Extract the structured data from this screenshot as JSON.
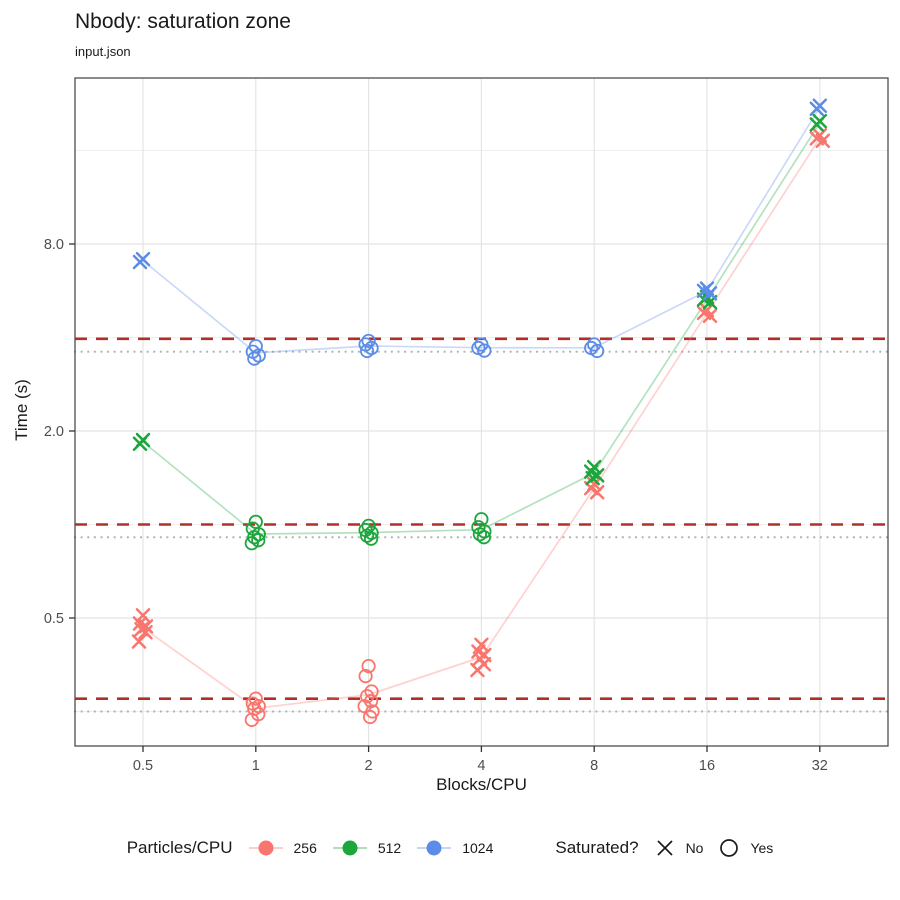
{
  "header": {
    "title": "Nbody: saturation zone",
    "subtitle": "input.json"
  },
  "chart_data": {
    "type": "scatter",
    "title": "Nbody: saturation zone",
    "subtitle": "input.json",
    "xlabel": "Blocks/CPU",
    "ylabel": "Time (s)",
    "x_scale": "log2",
    "y_scale": "log10",
    "xlim": [
      0.33,
      48
    ],
    "ylim": [
      0.19,
      27.5
    ],
    "x_ticks": [
      0.5,
      1,
      2,
      4,
      8,
      16,
      32
    ],
    "x_tick_labels": [
      "0.5",
      "1",
      "2",
      "4",
      "8",
      "16",
      "32"
    ],
    "y_ticks": [
      0.5,
      2.0,
      8.0
    ],
    "y_tick_labels": [
      "0.5",
      "2.0",
      "8.0"
    ],
    "y_minor_gridlines": [
      0.25,
      1,
      4,
      16
    ],
    "grid": "on",
    "legend_position": "bottom",
    "legend": {
      "color_title": "Particles/CPU",
      "shape_title": "Saturated?",
      "shape_items": [
        {
          "label": "No",
          "shape": "x"
        },
        {
          "label": "Yes",
          "shape": "circle"
        }
      ]
    },
    "series": [
      {
        "name": "256",
        "color": "#F8766D",
        "groups": [
          {
            "x": 0.5,
            "saturated": false,
            "times": [
              0.51,
              0.48,
              0.47,
              0.46,
              0.45,
              0.42
            ]
          },
          {
            "x": 1,
            "saturated": true,
            "times": [
              0.275,
              0.265,
              0.26,
              0.255,
              0.245,
              0.235
            ]
          },
          {
            "x": 2,
            "saturated": true,
            "times": [
              0.35,
              0.325,
              0.29,
              0.28,
              0.27,
              0.26,
              0.25,
              0.24
            ]
          },
          {
            "x": 4,
            "saturated": false,
            "times": [
              0.41,
              0.39,
              0.38,
              0.37,
              0.355,
              0.34
            ]
          },
          {
            "x": 8,
            "saturated": false,
            "times": [
              1.35,
              1.31,
              1.27
            ]
          },
          {
            "x": 16,
            "saturated": false,
            "times": [
              4.9,
              4.8,
              4.7
            ]
          },
          {
            "x": 32,
            "saturated": false,
            "times": [
              17.9,
              17.5,
              17.2
            ]
          }
        ]
      },
      {
        "name": "512",
        "color": "#1CA63C",
        "groups": [
          {
            "x": 0.5,
            "saturated": false,
            "times": [
              1.87,
              1.82
            ]
          },
          {
            "x": 1,
            "saturated": true,
            "times": [
              1.02,
              0.97,
              0.93,
              0.91,
              0.89,
              0.87
            ]
          },
          {
            "x": 2,
            "saturated": true,
            "times": [
              0.99,
              0.96,
              0.94,
              0.92,
              0.9
            ]
          },
          {
            "x": 4,
            "saturated": true,
            "times": [
              1.04,
              0.98,
              0.95,
              0.93,
              0.91
            ]
          },
          {
            "x": 8,
            "saturated": false,
            "times": [
              1.53,
              1.48,
              1.44,
              1.41
            ]
          },
          {
            "x": 16,
            "saturated": false,
            "times": [
              5.4,
              5.3,
              5.2
            ]
          },
          {
            "x": 32,
            "saturated": false,
            "times": [
              19.9,
              19.4
            ]
          }
        ]
      },
      {
        "name": "1024",
        "color": "#5B8DE8",
        "groups": [
          {
            "x": 0.5,
            "saturated": false,
            "times": [
              7.15,
              7.0
            ]
          },
          {
            "x": 1,
            "saturated": true,
            "times": [
              3.75,
              3.6,
              3.5,
              3.42
            ]
          },
          {
            "x": 2,
            "saturated": true,
            "times": [
              3.9,
              3.8,
              3.7,
              3.62
            ]
          },
          {
            "x": 4,
            "saturated": true,
            "times": [
              3.8,
              3.7,
              3.63
            ]
          },
          {
            "x": 8,
            "saturated": true,
            "times": [
              3.8,
              3.7,
              3.62
            ]
          },
          {
            "x": 16,
            "saturated": false,
            "times": [
              5.75,
              5.65,
              5.55
            ]
          },
          {
            "x": 32,
            "saturated": false,
            "times": [
              22.3,
              21.8
            ]
          }
        ]
      }
    ],
    "reference_lines": [
      {
        "series": "256",
        "dotted_baseline": 0.25,
        "dashed_threshold": 0.275
      },
      {
        "series": "512",
        "dotted_baseline": 0.91,
        "dashed_threshold": 1.0
      },
      {
        "series": "1024",
        "dotted_baseline": 3.6,
        "dashed_threshold": 3.96
      }
    ],
    "styles": {
      "dashed_color": "#B03028",
      "dotted_color": "#B3B3B3",
      "major_grid_color": "#E4E4E4",
      "minor_grid_color": "#EFEFEF",
      "panel_border_color": "#4D4D4D",
      "tick_label_color": "#4D4D4D"
    }
  }
}
